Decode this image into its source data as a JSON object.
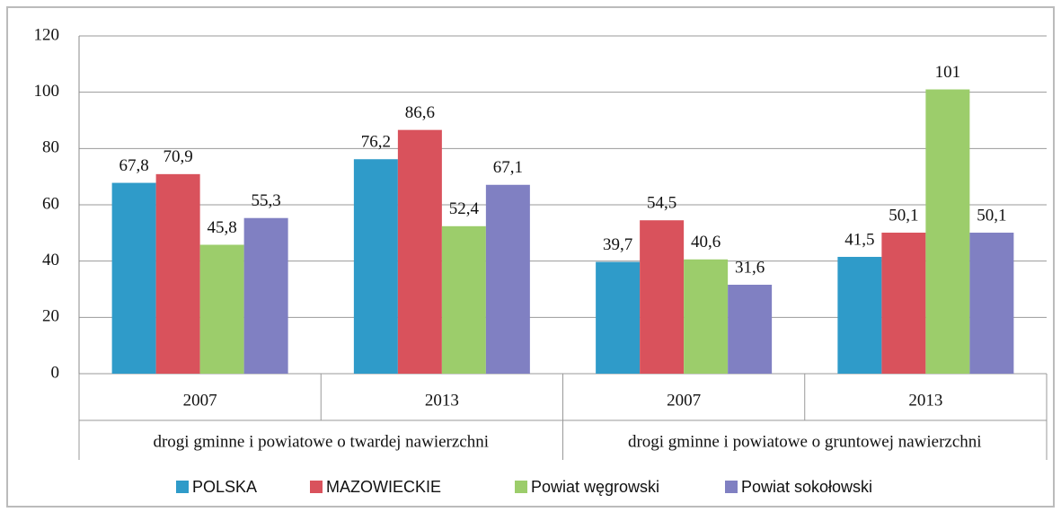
{
  "chart_data": {
    "type": "bar",
    "categories": [
      "2007",
      "2013",
      "2007",
      "2013"
    ],
    "groups": [
      "drogi gminne i powiatowe o twardej nawierzchni",
      "drogi gminne i powiatowe o gruntowej nawierzchni"
    ],
    "series": [
      {
        "name": "POLSKA",
        "color": "#2f9bc9",
        "values": [
          67.8,
          76.2,
          39.7,
          41.5
        ],
        "value_labels": [
          "67,8",
          "76,2",
          "39,7",
          "41,5"
        ]
      },
      {
        "name": "MAZOWIECKIE",
        "color": "#d9525c",
        "values": [
          70.9,
          86.6,
          54.5,
          50.1
        ],
        "value_labels": [
          "70,9",
          "86,6",
          "54,5",
          "50,1"
        ]
      },
      {
        "name": "Powiat węgrowski",
        "color": "#9ccd6b",
        "values": [
          45.8,
          52.4,
          40.6,
          101
        ],
        "value_labels": [
          "45,8",
          "52,4",
          "40,6",
          "101"
        ]
      },
      {
        "name": "Powiat sokołowski",
        "color": "#8080c2",
        "values": [
          55.3,
          67.1,
          31.6,
          50.1
        ],
        "value_labels": [
          "55,3",
          "67,1",
          "31,6",
          "50,1"
        ]
      }
    ],
    "ylim": [
      0,
      120
    ],
    "yticks": [
      0,
      20,
      40,
      60,
      80,
      100,
      120
    ],
    "grid": true,
    "legend": "bottom"
  }
}
